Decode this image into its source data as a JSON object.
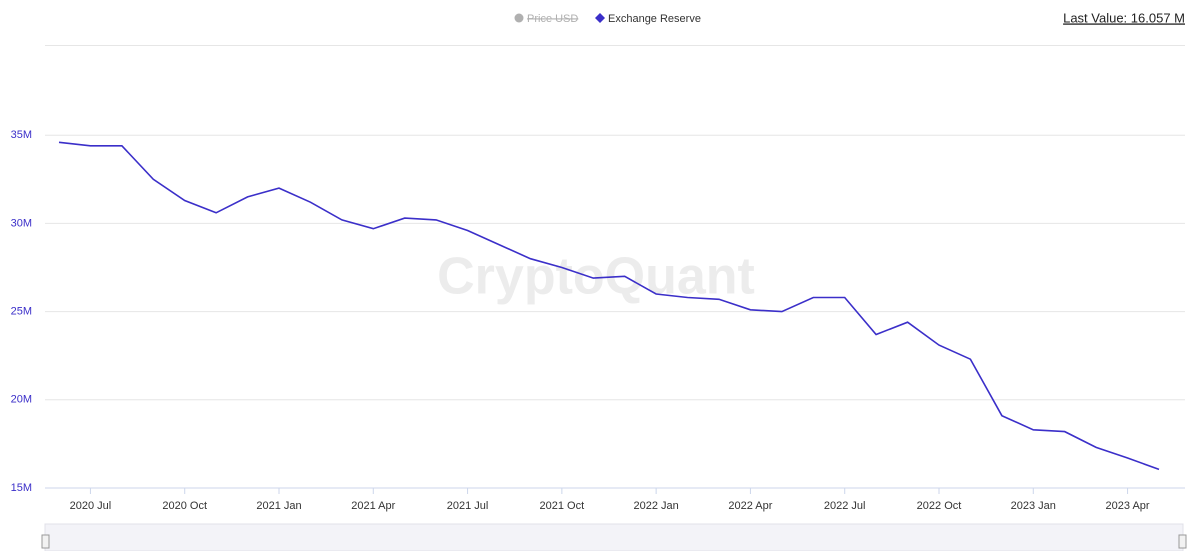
{
  "chart_data": {
    "type": "line",
    "last_value_label": "Last Value: 16.057 M",
    "watermark": "CryptoQuant",
    "hidden_series": [
      {
        "name": "Price USD",
        "color": "#b0b0b0"
      }
    ],
    "x": [
      "2020-06",
      "2020-07",
      "2020-08",
      "2020-09",
      "2020-10",
      "2020-11",
      "2020-12",
      "2021-01",
      "2021-02",
      "2021-03",
      "2021-04",
      "2021-05",
      "2021-06",
      "2021-07",
      "2021-08",
      "2021-09",
      "2021-10",
      "2021-11",
      "2021-12",
      "2022-01",
      "2022-02",
      "2022-03",
      "2022-04",
      "2022-05",
      "2022-06",
      "2022-07",
      "2022-08",
      "2022-09",
      "2022-10",
      "2022-11",
      "2022-12",
      "2023-01",
      "2023-02",
      "2023-03",
      "2023-04",
      "2023-05"
    ],
    "series": [
      {
        "name": "Exchange Reserve",
        "color": "#3b2fc9",
        "values": [
          34600000,
          34400000,
          34400000,
          32500000,
          31300000,
          30600000,
          31500000,
          32000000,
          31200000,
          30200000,
          29700000,
          30300000,
          30200000,
          29600000,
          28800000,
          28000000,
          27500000,
          26900000,
          27000000,
          26000000,
          25800000,
          25700000,
          25100000,
          25000000,
          25800000,
          25800000,
          23700000,
          24400000,
          23100000,
          22300000,
          19100000,
          18300000,
          18200000,
          17300000,
          16700000,
          16057000
        ]
      }
    ],
    "xlim": [
      "2020-06",
      "2023-05"
    ],
    "xticks": [
      {
        "value": "2020-07",
        "label": "2020 Jul"
      },
      {
        "value": "2020-10",
        "label": "2020 Oct"
      },
      {
        "value": "2021-01",
        "label": "2021 Jan"
      },
      {
        "value": "2021-04",
        "label": "2021 Apr"
      },
      {
        "value": "2021-07",
        "label": "2021 Jul"
      },
      {
        "value": "2021-10",
        "label": "2021 Oct"
      },
      {
        "value": "2022-01",
        "label": "2022 Jan"
      },
      {
        "value": "2022-04",
        "label": "2022 Apr"
      },
      {
        "value": "2022-07",
        "label": "2022 Jul"
      },
      {
        "value": "2022-10",
        "label": "2022 Oct"
      },
      {
        "value": "2023-01",
        "label": "2023 Jan"
      },
      {
        "value": "2023-04",
        "label": "2023 Apr"
      }
    ],
    "ylim": [
      15000000,
      40000000
    ],
    "yticks": [
      {
        "value": 15000000,
        "label": "15M"
      },
      {
        "value": 20000000,
        "label": "20M"
      },
      {
        "value": 25000000,
        "label": "25M"
      },
      {
        "value": 30000000,
        "label": "30M"
      },
      {
        "value": 35000000,
        "label": "35M"
      }
    ],
    "grid": true
  }
}
